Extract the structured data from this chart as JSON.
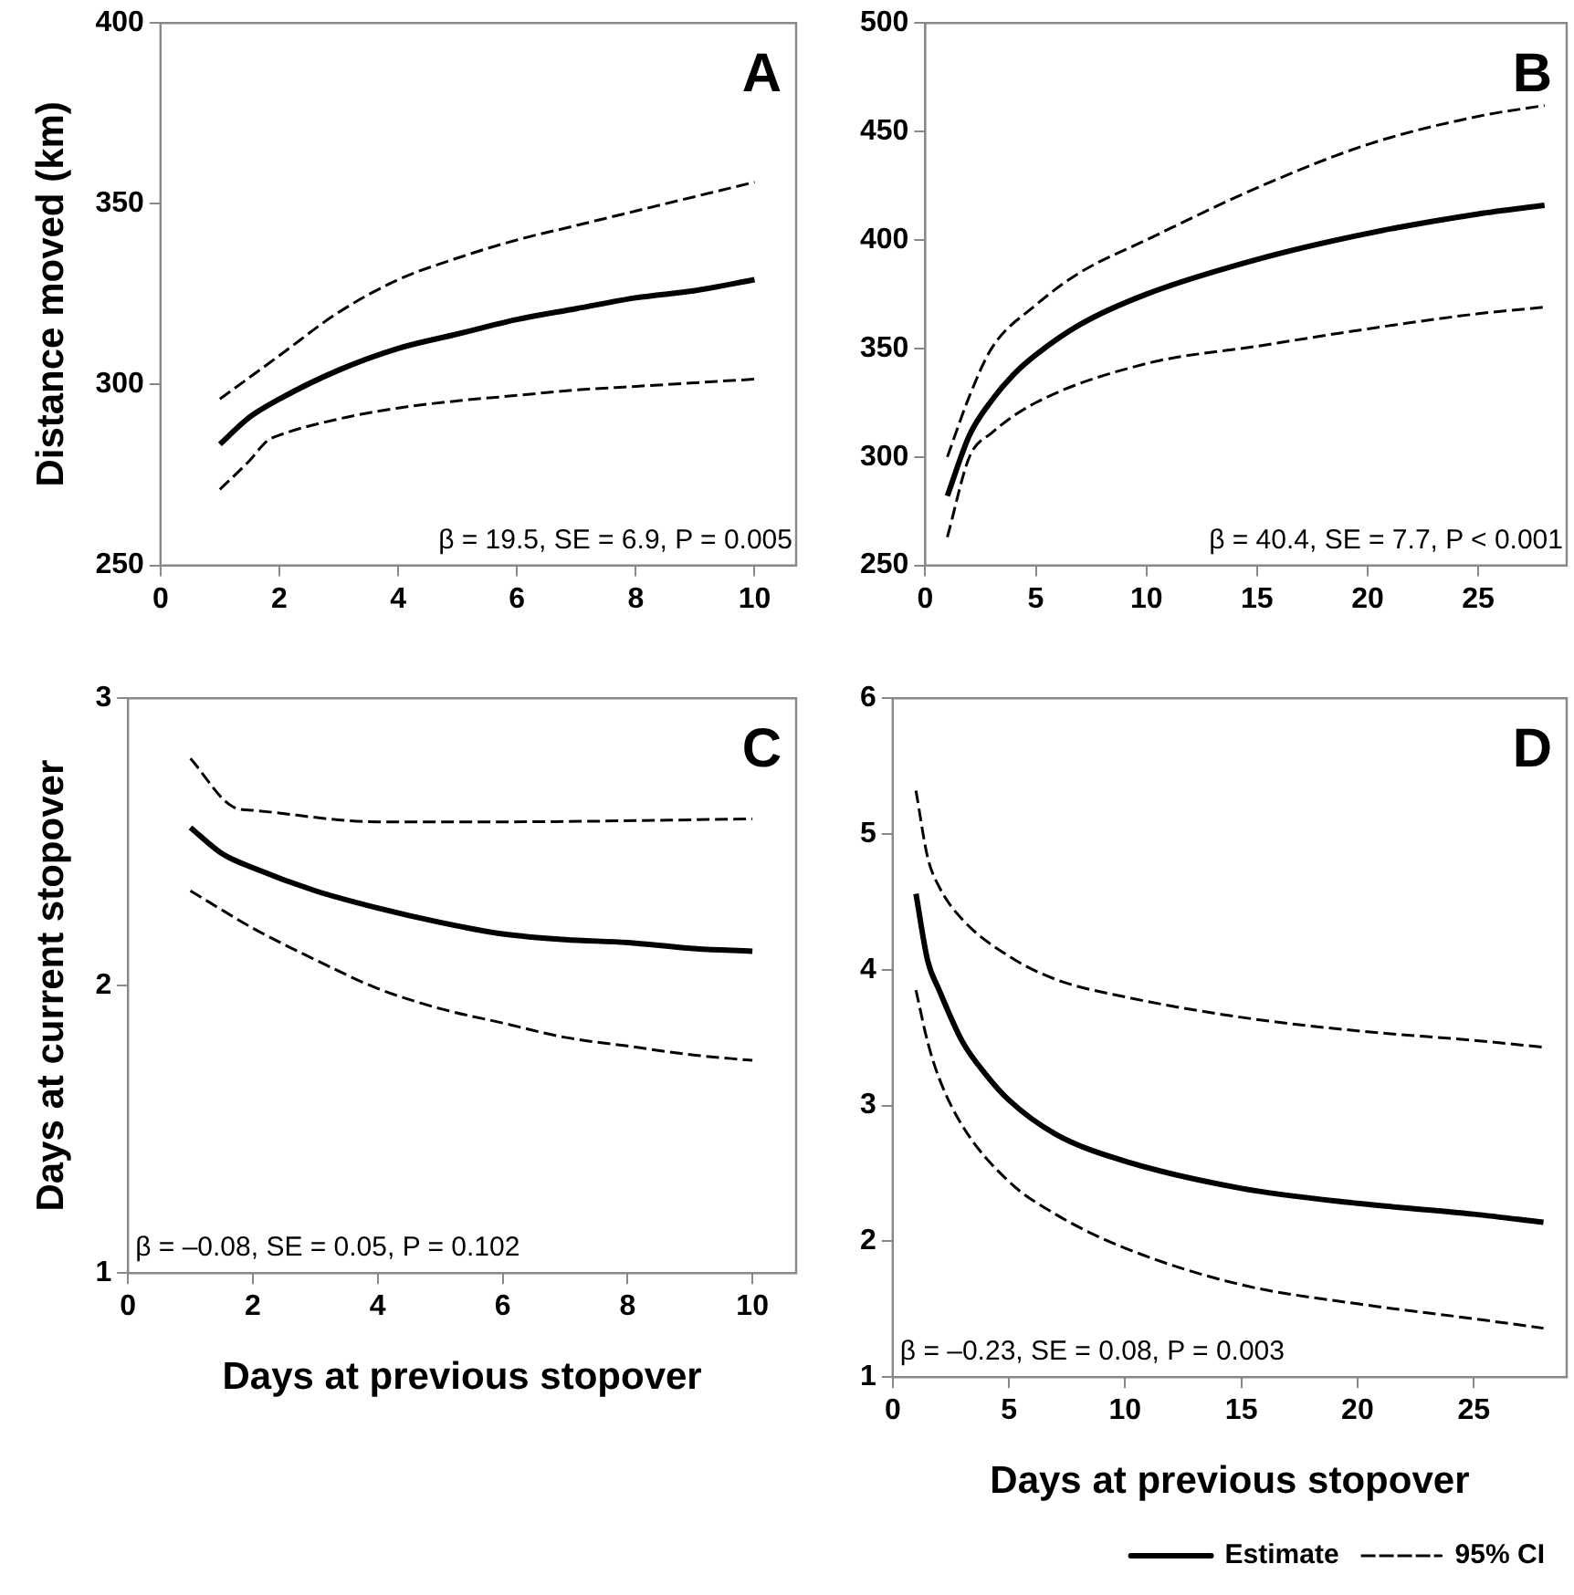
{
  "chart_data": [
    {
      "type": "line",
      "ylabel": "Distance moved (km)",
      "xlim": [
        0,
        10.7
      ],
      "xticks": [
        0,
        2,
        4,
        6,
        8,
        10
      ],
      "ylim": [
        250,
        400
      ],
      "yticks": [
        250,
        300,
        350,
        400
      ],
      "grid": false,
      "legend": false,
      "marker": "none",
      "annotations": [
        "A",
        "β = 19.5, SE = 6.9, P = 0.005"
      ],
      "series": [
        {
          "color": "#000000",
          "line_style": "solid",
          "x": [
            1,
            1.5,
            2,
            3,
            4,
            5,
            6,
            7,
            8,
            9,
            10
          ],
          "values": [
            283.5,
            291,
            296,
            304,
            310,
            314,
            318,
            321,
            324,
            326,
            329
          ]
        },
        {
          "color": "#000000",
          "line_style": "dashed",
          "x": [
            1,
            1.5,
            2,
            3,
            4,
            5,
            6,
            7,
            8,
            9,
            10
          ],
          "values": [
            296,
            302,
            308,
            320,
            329,
            335,
            340,
            344,
            348,
            352,
            356
          ]
        },
        {
          "color": "#000000",
          "line_style": "dashed",
          "x": [
            1,
            1.5,
            1.8,
            2,
            3,
            4,
            5,
            6,
            7,
            8,
            9,
            10
          ],
          "values": [
            271,
            279,
            284.5,
            286,
            290.5,
            293.5,
            295.5,
            297,
            298.5,
            299.5,
            300.5,
            301.5
          ]
        }
      ]
    },
    {
      "type": "line",
      "xlim": [
        0,
        29
      ],
      "xticks": [
        0,
        5,
        10,
        15,
        20,
        25
      ],
      "ylim": [
        250,
        500
      ],
      "yticks": [
        250,
        300,
        350,
        400,
        450,
        500
      ],
      "grid": false,
      "legend": false,
      "marker": "none",
      "annotations": [
        "B",
        "β = 40.4, SE = 7.7, P < 0.001"
      ],
      "series": [
        {
          "color": "#000000",
          "line_style": "solid",
          "x": [
            1,
            2,
            3,
            4,
            5,
            7,
            10,
            15,
            20,
            25,
            28
          ],
          "values": [
            282,
            310,
            326,
            338,
            347,
            361,
            375,
            391,
            403,
            412,
            416
          ]
        },
        {
          "color": "#000000",
          "line_style": "dashed",
          "x": [
            1,
            2,
            3,
            5,
            7,
            10,
            15,
            20,
            25,
            28
          ],
          "values": [
            300,
            328,
            350,
            370,
            385,
            400,
            424,
            444,
            457,
            462
          ]
        },
        {
          "color": "#000000",
          "line_style": "dashed",
          "x": [
            1,
            2,
            3,
            5,
            10,
            15,
            20,
            25,
            28
          ],
          "values": [
            263,
            300,
            311,
            325,
            343,
            351,
            359,
            366,
            369
          ]
        }
      ]
    },
    {
      "type": "line",
      "xlabel": "Days at previous stopover",
      "ylabel": "Days at current stopover",
      "xlim": [
        0,
        10.7
      ],
      "xticks": [
        0,
        2,
        4,
        6,
        8,
        10
      ],
      "ylim": [
        1,
        3
      ],
      "yticks": [
        1,
        2,
        3
      ],
      "grid": false,
      "legend": false,
      "marker": "none",
      "annotations": [
        "C",
        "β = –0.08, SE = 0.05, P = 0.102"
      ],
      "series": [
        {
          "color": "#000000",
          "line_style": "solid",
          "x": [
            1,
            1.5,
            2,
            3,
            4,
            5,
            6,
            7,
            8,
            9,
            10
          ],
          "values": [
            2.55,
            2.46,
            2.41,
            2.33,
            2.27,
            2.22,
            2.18,
            2.16,
            2.15,
            2.13,
            2.12
          ]
        },
        {
          "color": "#000000",
          "line_style": "dashed",
          "x": [
            1,
            1.7,
            2,
            4,
            6,
            10
          ],
          "values": [
            2.79,
            2.62,
            2.61,
            2.57,
            2.57,
            2.58
          ]
        },
        {
          "color": "#000000",
          "line_style": "dashed",
          "x": [
            1,
            2,
            3,
            4,
            5,
            6,
            7,
            8,
            9,
            10
          ],
          "values": [
            2.33,
            2.2,
            2.09,
            1.99,
            1.92,
            1.87,
            1.82,
            1.79,
            1.76,
            1.74
          ]
        }
      ]
    },
    {
      "type": "line",
      "xlabel": "Days at previous stopover",
      "xlim": [
        0,
        29
      ],
      "xticks": [
        0,
        5,
        10,
        15,
        20,
        25
      ],
      "ylim": [
        1,
        6
      ],
      "yticks": [
        1,
        2,
        3,
        4,
        5,
        6
      ],
      "grid": false,
      "legend": "bottom right",
      "marker": "none",
      "annotations": [
        "D",
        "β = –0.23, SE = 0.08, P = 0.003"
      ],
      "series": [
        {
          "name": "Estimate",
          "color": "#000000",
          "line_style": "solid",
          "x": [
            1,
            1.5,
            2,
            3,
            4,
            5,
            7,
            10,
            15,
            20,
            25,
            28
          ],
          "values": [
            4.56,
            4.07,
            3.85,
            3.47,
            3.23,
            3.04,
            2.79,
            2.59,
            2.39,
            2.28,
            2.2,
            2.14
          ]
        },
        {
          "name": "95% CI",
          "color": "#000000",
          "line_style": "dashed",
          "x": [
            1,
            1.5,
            2,
            3,
            5,
            7,
            10,
            15,
            20,
            25,
            28
          ],
          "values": [
            5.32,
            4.83,
            4.61,
            4.37,
            4.1,
            3.93,
            3.8,
            3.65,
            3.55,
            3.48,
            3.43
          ]
        },
        {
          "color": "#000000",
          "line_style": "dashed",
          "x": [
            1,
            1.5,
            2,
            3,
            5,
            7,
            10,
            15,
            20,
            25,
            28
          ],
          "values": [
            3.85,
            3.47,
            3.2,
            2.85,
            2.44,
            2.2,
            1.95,
            1.68,
            1.54,
            1.43,
            1.36
          ]
        }
      ]
    }
  ]
}
